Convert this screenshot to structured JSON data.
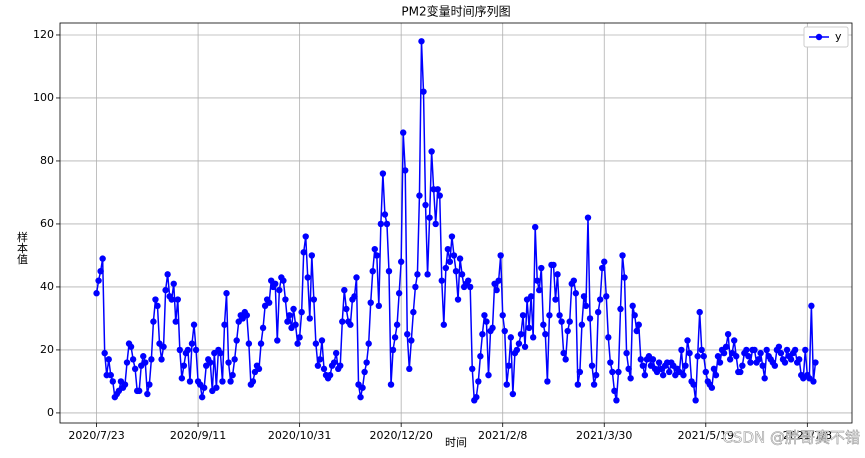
{
  "chart_data": {
    "type": "line",
    "title": "PM2变量时间序列图",
    "xlabel": "时间",
    "ylabel": "样本值",
    "watermark": "CSDN @胖哥真不错",
    "grid": true,
    "legend": "upper right",
    "marker": "o",
    "xlim": [
      "2020/7/5",
      "2021/7/30"
    ],
    "xticks": [
      "2020/7/23",
      "2020/9/11",
      "2020/10/31",
      "2020/12/20",
      "2021/2/8",
      "2021/3/30",
      "2021/5/19",
      "2021/7/8"
    ],
    "ylim": [
      -3.2,
      123.8
    ],
    "yticks": [
      0,
      20,
      40,
      60,
      80,
      100,
      120
    ],
    "x": [
      "2020/7/23",
      "2020/7/24",
      "2020/7/25",
      "2020/7/26",
      "2020/7/27",
      "2020/7/28",
      "2020/7/29",
      "2020/7/30",
      "2020/7/31",
      "2020/8/1",
      "2020/8/2",
      "2020/8/3",
      "2020/8/4",
      "2020/8/5",
      "2020/8/6",
      "2020/8/7",
      "2020/8/8",
      "2020/8/9",
      "2020/8/10",
      "2020/8/11",
      "2020/8/12",
      "2020/8/13",
      "2020/8/14",
      "2020/8/15",
      "2020/8/16",
      "2020/8/17",
      "2020/8/18",
      "2020/8/19",
      "2020/8/20",
      "2020/8/21",
      "2020/8/22",
      "2020/8/23",
      "2020/8/24",
      "2020/8/25",
      "2020/8/26",
      "2020/8/27",
      "2020/8/28",
      "2020/8/29",
      "2020/8/30",
      "2020/8/31",
      "2020/9/1",
      "2020/9/2",
      "2020/9/3",
      "2020/9/4",
      "2020/9/5",
      "2020/9/6",
      "2020/9/7",
      "2020/9/8",
      "2020/9/9",
      "2020/9/10",
      "2020/9/11",
      "2020/9/12",
      "2020/9/13",
      "2020/9/14",
      "2020/9/15",
      "2020/9/16",
      "2020/9/17",
      "2020/9/18",
      "2020/9/19",
      "2020/9/20",
      "2020/9/21",
      "2020/9/22",
      "2020/9/23",
      "2020/9/24",
      "2020/9/25",
      "2020/9/26",
      "2020/9/27",
      "2020/9/28",
      "2020/9/29",
      "2020/9/30",
      "2020/10/1",
      "2020/10/2",
      "2020/10/3",
      "2020/10/4",
      "2020/10/5",
      "2020/10/6",
      "2020/10/7",
      "2020/10/8",
      "2020/10/9",
      "2020/10/10",
      "2020/10/11",
      "2020/10/12",
      "2020/10/13",
      "2020/10/14",
      "2020/10/15",
      "2020/10/16",
      "2020/10/17",
      "2020/10/18",
      "2020/10/19",
      "2020/10/20",
      "2020/10/21",
      "2020/10/22",
      "2020/10/23",
      "2020/10/24",
      "2020/10/25",
      "2020/10/26",
      "2020/10/27",
      "2020/10/28",
      "2020/10/29",
      "2020/10/30",
      "2020/10/31",
      "2020/11/1",
      "2020/11/2",
      "2020/11/3",
      "2020/11/4",
      "2020/11/5",
      "2020/11/6",
      "2020/11/7",
      "2020/11/8",
      "2020/11/9",
      "2020/11/10",
      "2020/11/11",
      "2020/11/12",
      "2020/11/13",
      "2020/11/14",
      "2020/11/15",
      "2020/11/16",
      "2020/11/17",
      "2020/11/18",
      "2020/11/19",
      "2020/11/20",
      "2020/11/21",
      "2020/11/22",
      "2020/11/23",
      "2020/11/24",
      "2020/11/25",
      "2020/11/26",
      "2020/11/27",
      "2020/11/28",
      "2020/11/29",
      "2020/11/30",
      "2020/12/1",
      "2020/12/2",
      "2020/12/3",
      "2020/12/4",
      "2020/12/5",
      "2020/12/6",
      "2020/12/7",
      "2020/12/8",
      "2020/12/9",
      "2020/12/10",
      "2020/12/11",
      "2020/12/12",
      "2020/12/13",
      "2020/12/14",
      "2020/12/15",
      "2020/12/16",
      "2020/12/17",
      "2020/12/18",
      "2020/12/19",
      "2020/12/20",
      "2020/12/21",
      "2020/12/22",
      "2020/12/23",
      "2020/12/24",
      "2020/12/25",
      "2020/12/26",
      "2020/12/27",
      "2020/12/28",
      "2020/12/29",
      "2020/12/30",
      "2020/12/31",
      "2021/1/1",
      "2021/1/2",
      "2021/1/3",
      "2021/1/4",
      "2021/1/5",
      "2021/1/6",
      "2021/1/7",
      "2021/1/8",
      "2021/1/9",
      "2021/1/10",
      "2021/1/11",
      "2021/1/12",
      "2021/1/13",
      "2021/1/14",
      "2021/1/15",
      "2021/1/16",
      "2021/1/17",
      "2021/1/18",
      "2021/1/19",
      "2021/1/20",
      "2021/1/21",
      "2021/1/22",
      "2021/1/23",
      "2021/1/24",
      "2021/1/25",
      "2021/1/26",
      "2021/1/27",
      "2021/1/28",
      "2021/1/29",
      "2021/1/30",
      "2021/1/31",
      "2021/2/1",
      "2021/2/2",
      "2021/2/3",
      "2021/2/4",
      "2021/2/5",
      "2021/2/6",
      "2021/2/7",
      "2021/2/8",
      "2021/2/9",
      "2021/2/10",
      "2021/2/11",
      "2021/2/12",
      "2021/2/13",
      "2021/2/14",
      "2021/2/15",
      "2021/2/16",
      "2021/2/17",
      "2021/2/18",
      "2021/2/19",
      "2021/2/20",
      "2021/2/21",
      "2021/2/22",
      "2021/2/23",
      "2021/2/24",
      "2021/2/25",
      "2021/2/26",
      "2021/2/27",
      "2021/2/28",
      "2021/3/1",
      "2021/3/2",
      "2021/3/3",
      "2021/3/4",
      "2021/3/5",
      "2021/3/6",
      "2021/3/7",
      "2021/3/8",
      "2021/3/9",
      "2021/3/10",
      "2021/3/11",
      "2021/3/12",
      "2021/3/13",
      "2021/3/14",
      "2021/3/15",
      "2021/3/16",
      "2021/3/17",
      "2021/3/18",
      "2021/3/19",
      "2021/3/20",
      "2021/3/21",
      "2021/3/22",
      "2021/3/23",
      "2021/3/24",
      "2021/3/25",
      "2021/3/26",
      "2021/3/27",
      "2021/3/28",
      "2021/3/29",
      "2021/3/30",
      "2021/3/31",
      "2021/4/1",
      "2021/4/2",
      "2021/4/3",
      "2021/4/4",
      "2021/4/5",
      "2021/4/6",
      "2021/4/7",
      "2021/4/8",
      "2021/4/9",
      "2021/4/10",
      "2021/4/11",
      "2021/4/12",
      "2021/4/13",
      "2021/4/14",
      "2021/4/15",
      "2021/4/16",
      "2021/4/17",
      "2021/4/18",
      "2021/4/19",
      "2021/4/20",
      "2021/4/21",
      "2021/4/22",
      "2021/4/23",
      "2021/4/24",
      "2021/4/25",
      "2021/4/26",
      "2021/4/27",
      "2021/4/28",
      "2021/4/29",
      "2021/4/30",
      "2021/5/1",
      "2021/5/2",
      "2021/5/3",
      "2021/5/4",
      "2021/5/5",
      "2021/5/6",
      "2021/5/7",
      "2021/5/8",
      "2021/5/9",
      "2021/5/10",
      "2021/5/11",
      "2021/5/12",
      "2021/5/13",
      "2021/5/14",
      "2021/5/15",
      "2021/5/16",
      "2021/5/17",
      "2021/5/18",
      "2021/5/19",
      "2021/5/20",
      "2021/5/21",
      "2021/5/22",
      "2021/5/23",
      "2021/5/24",
      "2021/5/25",
      "2021/5/26",
      "2021/5/27",
      "2021/5/28",
      "2021/5/29",
      "2021/5/30",
      "2021/5/31",
      "2021/6/1",
      "2021/6/2",
      "2021/6/3",
      "2021/6/4",
      "2021/6/5",
      "2021/6/6",
      "2021/6/7",
      "2021/6/8",
      "2021/6/9",
      "2021/6/10",
      "2021/6/11",
      "2021/6/12",
      "2021/6/13",
      "2021/6/14",
      "2021/6/15",
      "2021/6/16",
      "2021/6/17",
      "2021/6/18",
      "2021/6/19",
      "2021/6/20",
      "2021/6/21",
      "2021/6/22",
      "2021/6/23",
      "2021/6/24",
      "2021/6/25",
      "2021/6/26",
      "2021/6/27",
      "2021/6/28",
      "2021/6/29",
      "2021/6/30",
      "2021/7/1",
      "2021/7/2",
      "2021/7/3",
      "2021/7/4",
      "2021/7/5",
      "2021/7/6",
      "2021/7/7",
      "2021/7/8",
      "2021/7/9",
      "2021/7/10",
      "2021/7/11",
      "2021/7/12"
    ],
    "series": [
      {
        "name": "y",
        "color": "#0000ff",
        "values": [
          38,
          42,
          45,
          49,
          19,
          12,
          17,
          12,
          10,
          5,
          6,
          7,
          10,
          8,
          9,
          16,
          22,
          21,
          17,
          14,
          7,
          7,
          15,
          18,
          16,
          6,
          9,
          17,
          29,
          36,
          34,
          22,
          17,
          21,
          39,
          44,
          37,
          36,
          41,
          29,
          36,
          20,
          11,
          15,
          19,
          20,
          10,
          22,
          28,
          20,
          10,
          9,
          5,
          8,
          15,
          17,
          16,
          7,
          19,
          8,
          20,
          19,
          10,
          28,
          38,
          16,
          10,
          12,
          17,
          23,
          29,
          31,
          30,
          32,
          31,
          22,
          9,
          10,
          13,
          15,
          14,
          22,
          27,
          34,
          36,
          35,
          42,
          40,
          41,
          23,
          39,
          43,
          42,
          36,
          29,
          31,
          27,
          33,
          28,
          22,
          24,
          32,
          51,
          56,
          43,
          30,
          50,
          36,
          22,
          15,
          17,
          23,
          14,
          12,
          11,
          12,
          15,
          16,
          19,
          14,
          15,
          29,
          39,
          33,
          29,
          28,
          36,
          37,
          43,
          9,
          5,
          8,
          13,
          16,
          22,
          35,
          45,
          52,
          50,
          34,
          60,
          76,
          63,
          60,
          45,
          9,
          20,
          24,
          28,
          38,
          48,
          89,
          77,
          25,
          14,
          23,
          32,
          40,
          44,
          69,
          118,
          102,
          66,
          44,
          62,
          83,
          71,
          60,
          71,
          69,
          42,
          28,
          46,
          52,
          48,
          56,
          50,
          45,
          36,
          49,
          44,
          40,
          41,
          42,
          40,
          14,
          4,
          5,
          10,
          18,
          25,
          31,
          29,
          12,
          26,
          27,
          41,
          39,
          42,
          50,
          31,
          26,
          9,
          15,
          24,
          6,
          19,
          20,
          22,
          25,
          31,
          21,
          36,
          27,
          37,
          24,
          59,
          42,
          39,
          46,
          28,
          25,
          10,
          31,
          47,
          47,
          36,
          44,
          31,
          29,
          19,
          17,
          26,
          29,
          41,
          42,
          38,
          9,
          13,
          28,
          37,
          34,
          62,
          30,
          15,
          9,
          12,
          32,
          36,
          46,
          48,
          37,
          24,
          16,
          13,
          7,
          4,
          13,
          33,
          50,
          43,
          19,
          14,
          11,
          34,
          31,
          26,
          28,
          17,
          15,
          12,
          17,
          18,
          15,
          17,
          14,
          13,
          16,
          14,
          12,
          15,
          16,
          13,
          16,
          15,
          12,
          14,
          13,
          20,
          12,
          15,
          23,
          19,
          10,
          9,
          4,
          18,
          32,
          20,
          18,
          13,
          10,
          9,
          8,
          14,
          12,
          18,
          16,
          20,
          19,
          21,
          25,
          17,
          19,
          23,
          18,
          13,
          13,
          15,
          19,
          20,
          18,
          16,
          20,
          20,
          16,
          17,
          19,
          15,
          11,
          20,
          18,
          17,
          16,
          15,
          20,
          21,
          19,
          17,
          16,
          20,
          18,
          17,
          19,
          20,
          16,
          17,
          12,
          11,
          20,
          12,
          11,
          34,
          10,
          16
        ]
      }
    ]
  }
}
